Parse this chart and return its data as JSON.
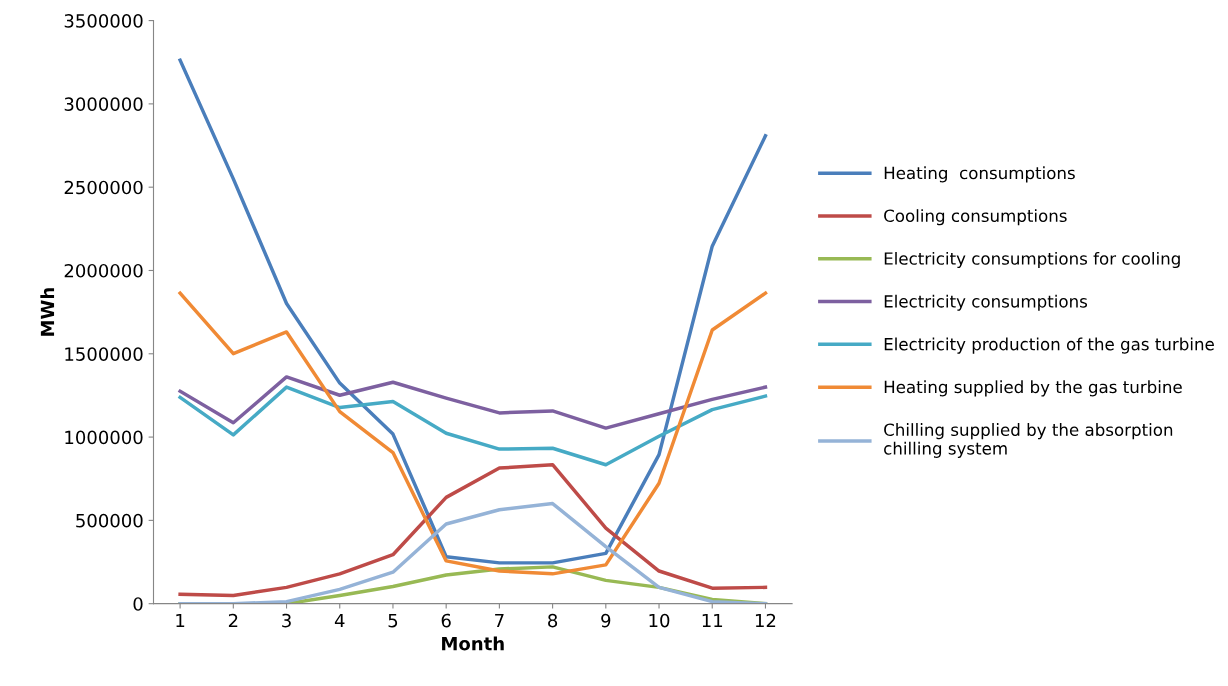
{
  "chart_data": {
    "type": "line",
    "xlabel": "Month",
    "ylabel": "MWh",
    "categories": [
      "1",
      "2",
      "3",
      "4",
      "5",
      "6",
      "7",
      "8",
      "9",
      "10",
      "11",
      "12"
    ],
    "ylim": [
      0,
      3500000
    ],
    "yticks": [
      0,
      500000,
      1000000,
      1500000,
      2000000,
      2500000,
      3000000,
      3500000
    ],
    "grid": false,
    "legend": "right",
    "marker": "none",
    "line_style": "solid",
    "series": [
      {
        "name": "Heating  consumptions",
        "color": "#4a7ebb",
        "values": [
          3262000,
          2550000,
          1802000,
          1324000,
          1018000,
          282000,
          245000,
          245000,
          302000,
          895000,
          2146000,
          2808000
        ]
      },
      {
        "name": "Cooling consumptions",
        "color": "#be4b48",
        "values": [
          56000,
          49000,
          98000,
          179000,
          294000,
          638000,
          814000,
          834000,
          454000,
          196000,
          93000,
          98000
        ]
      },
      {
        "name": "Electricity consumptions for cooling",
        "color": "#98b954",
        "values": [
          0,
          0,
          0,
          49000,
          103000,
          172000,
          208000,
          221000,
          140000,
          98000,
          25000,
          0
        ]
      },
      {
        "name": "Electricity consumptions",
        "color": "#7d60a0",
        "values": [
          1275000,
          1086000,
          1361000,
          1251000,
          1329000,
          1234000,
          1145000,
          1157000,
          1054000,
          1140000,
          1226000,
          1300000
        ]
      },
      {
        "name": "Electricity production of the gas turbine",
        "color": "#46aac5",
        "values": [
          1238000,
          1013000,
          1300000,
          1177000,
          1214000,
          1023000,
          928000,
          933000,
          834000,
          1005000,
          1165000,
          1246000
        ]
      },
      {
        "name": "Heating supplied by the gas turbine",
        "color": "#f08a35",
        "values": [
          1864000,
          1501000,
          1631000,
          1153000,
          907000,
          257000,
          196000,
          179000,
          233000,
          723000,
          1643000,
          1864000
        ]
      },
      {
        "name": "Chilling supplied by the absorption chilling system",
        "color": "#95b3d7",
        "values": [
          0,
          0,
          12000,
          86000,
          189000,
          478000,
          564000,
          601000,
          343000,
          98000,
          12000,
          0
        ]
      }
    ]
  }
}
